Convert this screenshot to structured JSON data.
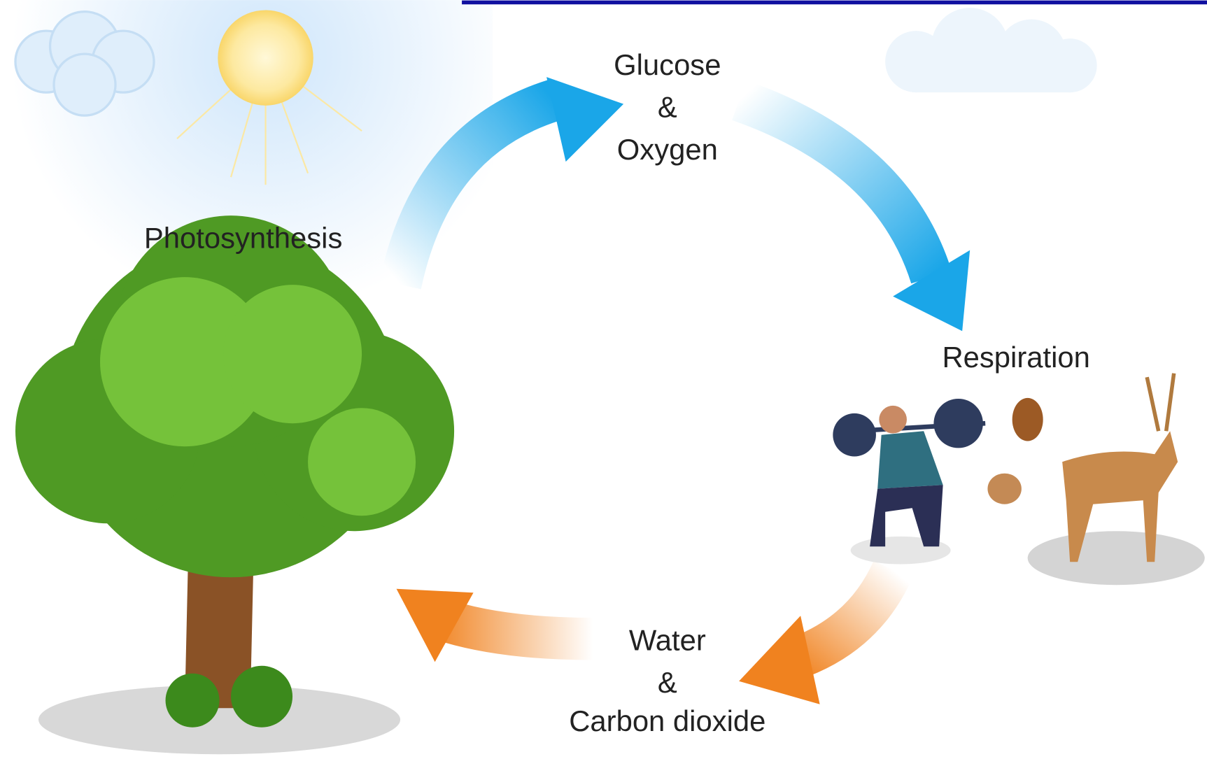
{
  "labels": {
    "photosynthesis": "Photosynthesis",
    "products": [
      "Glucose",
      "&",
      "Oxygen"
    ],
    "respiration": "Respiration",
    "reactants": [
      "Water",
      "&",
      "Carbon dioxide"
    ]
  }
}
